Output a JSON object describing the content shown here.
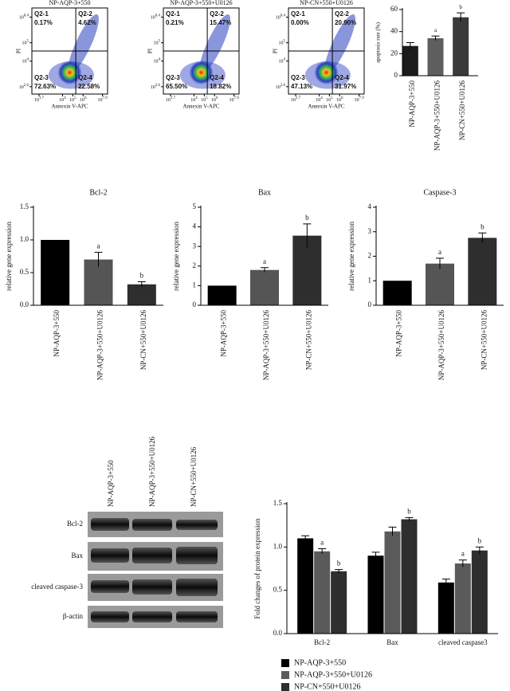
{
  "chart_data": [
    {
      "type": "flow",
      "title": "NP-AQP-3+550",
      "ylabel": "PI",
      "xlabel": "Annexin V-APC",
      "tick_base": "10",
      "xlim": [
        1.0,
        8.4
      ],
      "xticks": [
        1.7,
        4,
        5,
        6,
        7.9
      ],
      "ylim": [
        2.2,
        6.9
      ],
      "yticks": [
        2.6,
        4,
        5,
        6.4
      ],
      "quadrants": [
        {
          "name": "Q2-1",
          "value": 0.17,
          "label": "0.17%"
        },
        {
          "name": "Q2-2",
          "value": 4.62,
          "label": "4.62%"
        },
        {
          "name": "Q2-3",
          "value": 72.63,
          "label": "72.63%"
        },
        {
          "name": "Q2-4",
          "value": 22.58,
          "label": "22.58%"
        }
      ]
    },
    {
      "type": "flow",
      "title": "NP-AQP-3+550+U0126",
      "ylabel": "PI",
      "xlabel": "Annexin V-APC",
      "tick_base": "10",
      "xlim": [
        1.0,
        8.4
      ],
      "xticks": [
        1.7,
        4,
        5,
        6,
        7.9
      ],
      "ylim": [
        2.2,
        6.9
      ],
      "yticks": [
        2.6,
        4,
        5,
        6.4
      ],
      "quadrants": [
        {
          "name": "Q2-1",
          "value": 0.21,
          "label": "0.21%"
        },
        {
          "name": "Q2-2",
          "value": 15.47,
          "label": "15.47%"
        },
        {
          "name": "Q2-3",
          "value": 65.5,
          "label": "65.50%"
        },
        {
          "name": "Q2-4",
          "value": 18.82,
          "label": "18.82%"
        }
      ]
    },
    {
      "type": "flow",
      "title": "NP-CN+550+U0126",
      "ylabel": "PI",
      "xlabel": "Annexin V-APC",
      "tick_base": "10",
      "xlim": [
        1.0,
        8.4
      ],
      "xticks": [
        1.7,
        4,
        5,
        6,
        7.9
      ],
      "ylim": [
        2.2,
        6.9
      ],
      "yticks": [
        2.6,
        4,
        5,
        6.4
      ],
      "quadrants": [
        {
          "name": "Q2-1",
          "value": 0.0,
          "label": "0.00%"
        },
        {
          "name": "Q2-2",
          "value": 20.9,
          "label": "20.90%"
        },
        {
          "name": "Q2-3",
          "value": 47.13,
          "label": "47.13%"
        },
        {
          "name": "Q2-4",
          "value": 31.97,
          "label": "31.97%"
        }
      ]
    },
    {
      "type": "bar",
      "ylabel": "apoptosis rate (%)",
      "categories": [
        "NP-AQP-3+550",
        "NP-AQP-3+550+U0126",
        "NP-CN+550+U0126"
      ],
      "values": [
        27,
        34,
        53
      ],
      "errors": [
        3,
        2,
        4
      ],
      "colors": [
        "#1c1c1c",
        "#5e5e5e",
        "#3a3a3a"
      ],
      "annotations": [
        null,
        "a",
        "b"
      ],
      "ylim": [
        0,
        60
      ],
      "yticks": [
        0,
        20,
        40,
        60
      ]
    },
    {
      "type": "bar",
      "title": "Bcl-2",
      "ylabel": "relative gene expression",
      "categories": [
        "NP-AQP-3+550",
        "NP-AQP-3+550+U0126",
        "NP-CN+550+U0126"
      ],
      "values": [
        1.0,
        0.7,
        0.32
      ],
      "errors": [
        null,
        0.11,
        0.04
      ],
      "colors": [
        "#000000",
        "#555555",
        "#2e2e2e"
      ],
      "annotations": [
        null,
        "a",
        "b"
      ],
      "ylim": [
        0,
        1.5
      ],
      "yticks": [
        {
          "value": 0,
          "label": "0.0"
        },
        0.5,
        {
          "value": 1,
          "label": "1.0"
        },
        1.5
      ]
    },
    {
      "type": "bar",
      "title": "Bax",
      "ylabel": "relative gene expression",
      "categories": [
        "NP-AQP-3+550",
        "NP-AQP-3+550+U0126",
        "NP-CN+550+U0126"
      ],
      "values": [
        1.0,
        1.8,
        3.55
      ],
      "errors": [
        null,
        0.12,
        0.6
      ],
      "colors": [
        "#000000",
        "#555555",
        "#2e2e2e"
      ],
      "annotations": [
        null,
        "a",
        "b"
      ],
      "ylim": [
        0,
        5
      ],
      "yticks": [
        0,
        1,
        2,
        3,
        4,
        5
      ]
    },
    {
      "type": "bar",
      "title": "Caspase-3",
      "ylabel": "relative gene expression",
      "categories": [
        "NP-AQP-3+550",
        "NP-AQP-3+550+U0126",
        "NP-CN+550+U0126"
      ],
      "values": [
        1.0,
        1.7,
        2.75
      ],
      "errors": [
        null,
        0.22,
        0.2
      ],
      "colors": [
        "#000000",
        "#555555",
        "#2e2e2e"
      ],
      "annotations": [
        null,
        "a",
        "b"
      ],
      "ylim": [
        0,
        4
      ],
      "yticks": [
        0,
        1,
        2,
        3,
        4
      ]
    },
    {
      "type": "grouped_bar",
      "ylabel": "Fold changes of protein expression",
      "categories": [
        "Bcl-2",
        "Bax",
        "cleaved caspase3"
      ],
      "series": [
        {
          "name": "NP-AQP-3+550",
          "color": "#000000",
          "values": [
            1.1,
            0.9,
            0.59
          ],
          "errors": [
            0.03,
            0.04,
            0.04
          ],
          "annotations": [
            null,
            null,
            null
          ]
        },
        {
          "name": "NP-AQP-3+550+U0126",
          "color": "#5a5a5a",
          "values": [
            0.95,
            1.18,
            0.81
          ],
          "errors": [
            0.03,
            0.05,
            0.04
          ],
          "annotations": [
            "a",
            null,
            "a"
          ]
        },
        {
          "name": "NP-CN+550+U0126",
          "color": "#2e2e2e",
          "values": [
            0.72,
            1.32,
            0.96
          ],
          "errors": [
            0.02,
            0.02,
            0.04
          ],
          "annotations": [
            "b",
            "b",
            "b"
          ]
        }
      ],
      "ylim": [
        0,
        1.5
      ],
      "yticks": [
        {
          "value": 0,
          "label": "0.0"
        },
        0.5,
        {
          "value": 1,
          "label": "1.0"
        },
        1.5
      ],
      "legend": "bottom"
    }
  ],
  "blot": {
    "columns": [
      "NP-AQP-3+550",
      "NP-AQP-3+550+U0126",
      "NP-CN+550+U0126"
    ],
    "rows": [
      "Bcl-2",
      "Bax",
      "cleaved caspase-3",
      "β-actin"
    ]
  }
}
